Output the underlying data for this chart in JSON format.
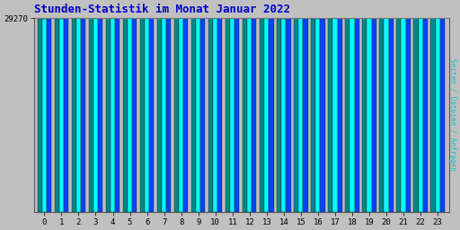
{
  "title": "Stunden-Statistik im Monat Januar 2022",
  "ylabel_right": "Seiten / Dateien / Anfragen",
  "x_labels": [
    "0",
    "1",
    "2",
    "3",
    "4",
    "5",
    "6",
    "7",
    "8",
    "9",
    "10",
    "11",
    "12",
    "13",
    "14",
    "15",
    "16",
    "17",
    "18",
    "19",
    "20",
    "21",
    "22",
    "23"
  ],
  "ytick_label": "29270",
  "bar_groups": 24,
  "background_color": "#c0c0c0",
  "plot_bg_color": "#c0c0c0",
  "title_color": "#0000cc",
  "ylabel_right_color": "#00cccc",
  "bar_color_teal": "#008888",
  "bar_color_cyan": "#00ffff",
  "bar_color_blue": "#0044ff",
  "values_teal": [
    29200,
    29190,
    29240,
    29255,
    29265,
    29295,
    29285,
    29265,
    29280,
    29275,
    29265,
    29250,
    29240,
    29235,
    29220,
    29265,
    29220,
    29235,
    29255,
    29250,
    29260,
    29285,
    29260,
    29245
  ],
  "values_cyan": [
    29215,
    29205,
    29250,
    29265,
    29275,
    29305,
    29300,
    29280,
    29295,
    29290,
    29280,
    29265,
    29255,
    29250,
    29235,
    29280,
    29235,
    29250,
    29270,
    29265,
    29275,
    29300,
    29275,
    29260
  ],
  "values_blue": [
    29170,
    29160,
    29205,
    29220,
    29235,
    29260,
    29245,
    29225,
    29240,
    29235,
    29225,
    29210,
    29195,
    29190,
    29175,
    29220,
    29175,
    29190,
    29210,
    29205,
    29215,
    29240,
    29215,
    29200
  ],
  "ymin": 0,
  "ymax": 29350,
  "ytick_val": 29270,
  "figsize": [
    5.12,
    2.56
  ],
  "dpi": 100
}
